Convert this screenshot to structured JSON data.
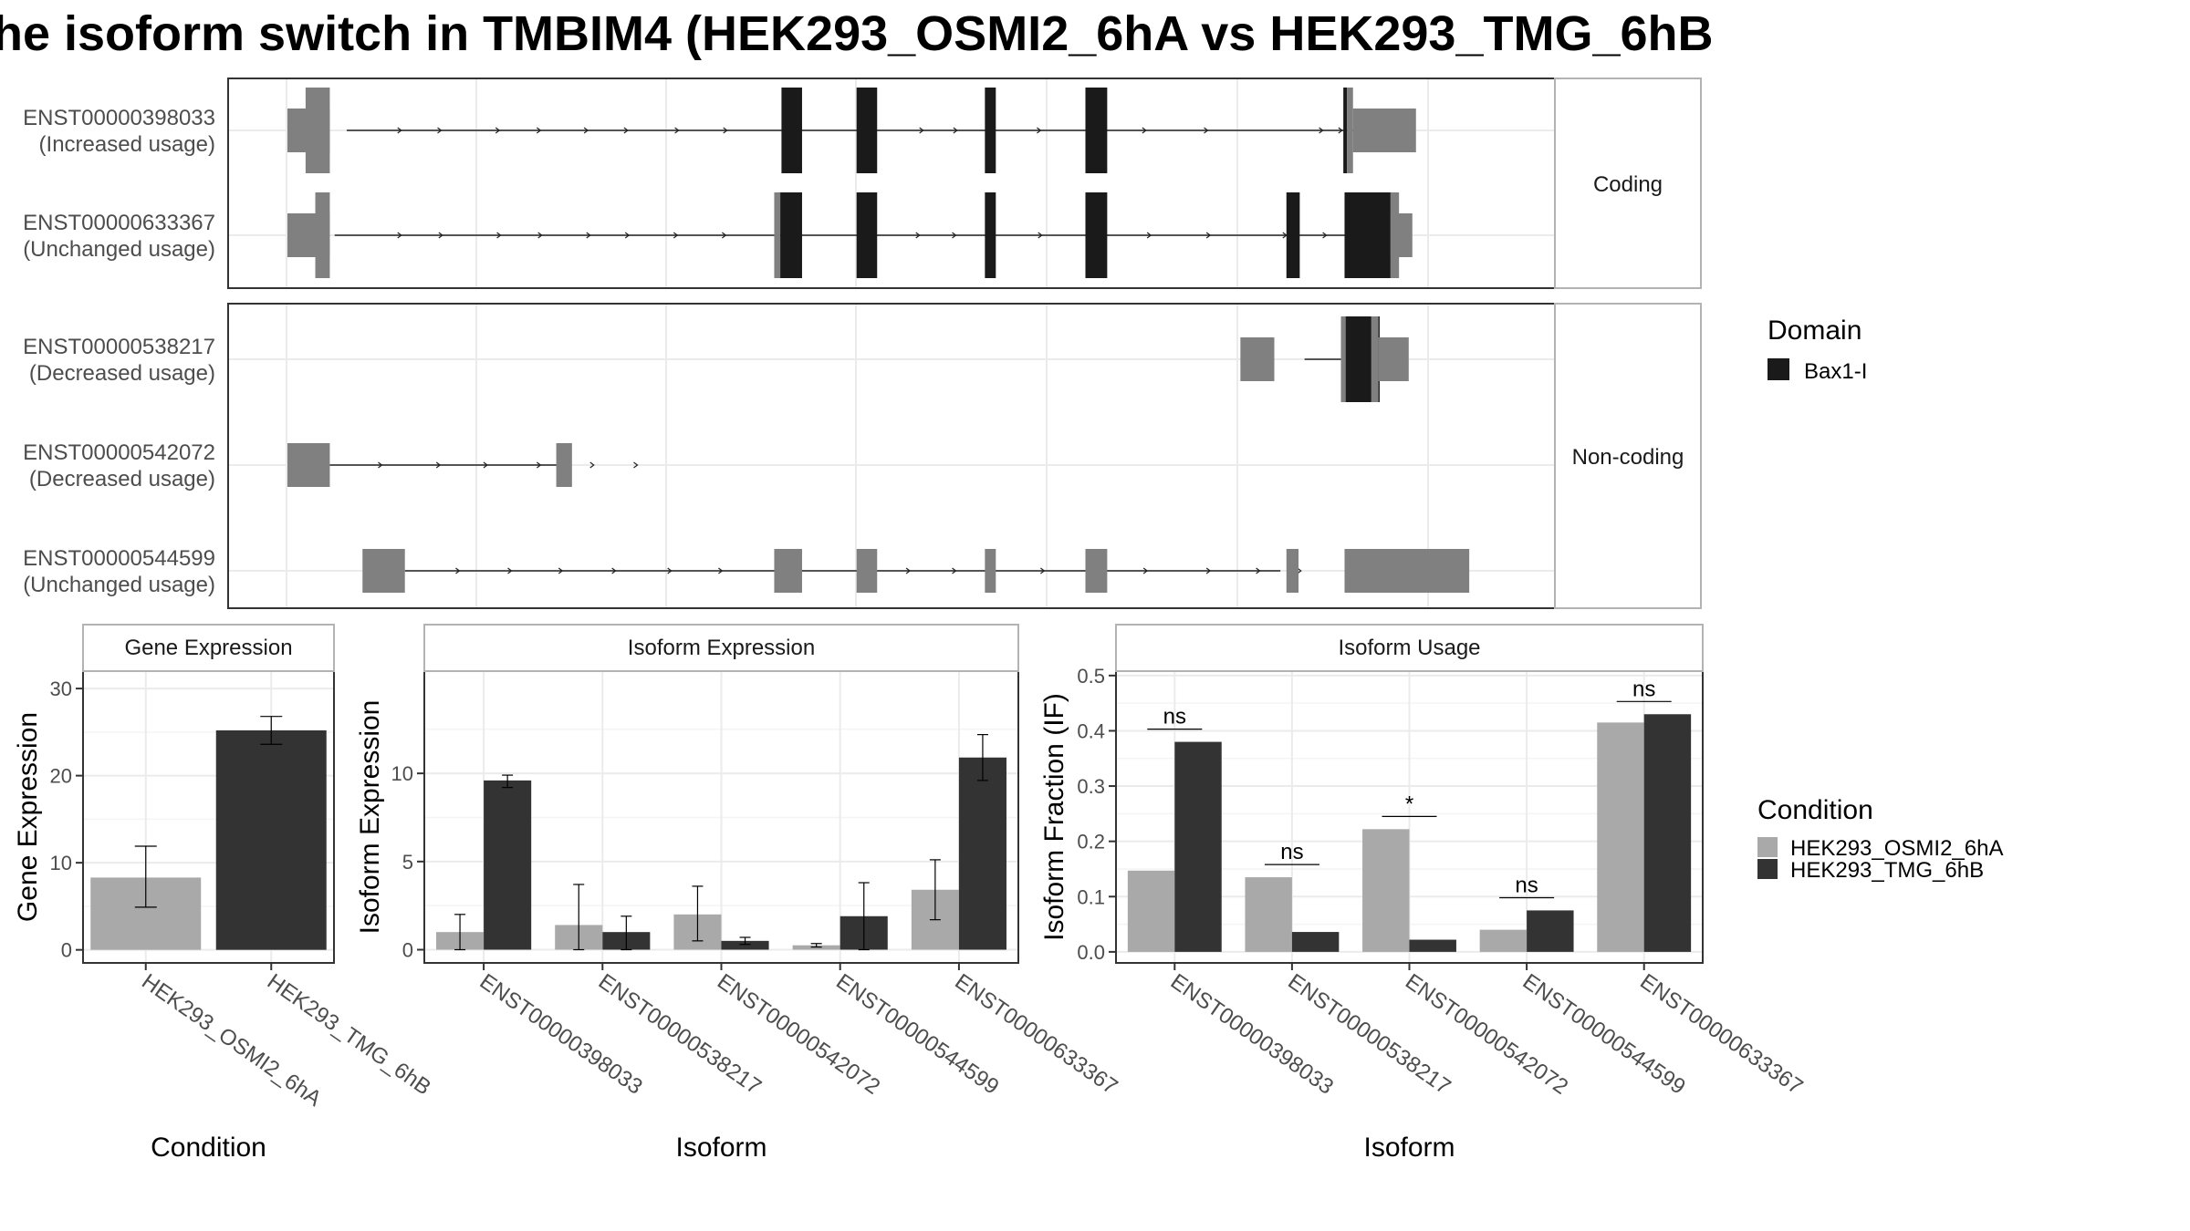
{
  "title": "he isoform switch in TMBIM4 (HEK293_OSMI2_6hA vs HEK293_TMG_6hB",
  "colors": {
    "domain": "#1a1a1a",
    "utr_exon": "#808080",
    "condition_a": "#a9a9a9",
    "condition_b": "#333333",
    "grid": "#ebebeb",
    "panel_border": "#333333",
    "strip_border": "#b3b3b3"
  },
  "structure": {
    "groups": [
      {
        "label": "Coding",
        "transcripts": [
          {
            "id": "ENST00000398033",
            "usage": "(Increased usage)",
            "intron": [
              0.049,
              0.91
            ],
            "arrows": [
              0.094,
              0.127,
              0.175,
              0.209,
              0.248,
              0.281,
              0.323,
              0.363,
              0.525,
              0.553,
              0.622,
              0.67,
              0.709,
              0.76,
              0.855,
              0.871
            ],
            "exons": [
              {
                "s": 0.0,
                "e": 0.035,
                "h": "s"
              },
              {
                "s": 0.015,
                "e": 0.035,
                "h": "l"
              },
              {
                "s": 0.408,
                "e": 0.425,
                "h": "l",
                "d": true
              },
              {
                "s": 0.47,
                "e": 0.487,
                "h": "l",
                "d": true
              },
              {
                "s": 0.576,
                "e": 0.585,
                "h": "l",
                "d": true
              },
              {
                "s": 0.659,
                "e": 0.677,
                "h": "l",
                "d": true
              },
              {
                "s": 0.872,
                "e": 0.875,
                "h": "l",
                "d": true
              },
              {
                "s": 0.875,
                "e": 0.88,
                "h": "l"
              },
              {
                "s": 0.88,
                "e": 0.932,
                "h": "s"
              }
            ]
          },
          {
            "id": "ENST00000633367",
            "usage": "(Unchanged usage)",
            "intron": [
              0.039,
              0.893
            ],
            "arrows": [
              0.094,
              0.128,
              0.176,
              0.21,
              0.25,
              0.282,
              0.322,
              0.362,
              0.522,
              0.552,
              0.623,
              0.67,
              0.713,
              0.762,
              0.825,
              0.858
            ],
            "exons": [
              {
                "s": 0.0,
                "e": 0.035,
                "h": "s"
              },
              {
                "s": 0.023,
                "e": 0.035,
                "h": "l"
              },
              {
                "s": 0.402,
                "e": 0.407,
                "h": "l"
              },
              {
                "s": 0.407,
                "e": 0.425,
                "h": "l",
                "d": true
              },
              {
                "s": 0.47,
                "e": 0.487,
                "h": "l",
                "d": true
              },
              {
                "s": 0.576,
                "e": 0.585,
                "h": "l",
                "d": true
              },
              {
                "s": 0.659,
                "e": 0.677,
                "h": "l",
                "d": true
              },
              {
                "s": 0.825,
                "e": 0.836,
                "h": "l",
                "d": true
              },
              {
                "s": 0.873,
                "e": 0.911,
                "h": "l",
                "d": true
              },
              {
                "s": 0.911,
                "e": 0.918,
                "h": "l"
              },
              {
                "s": 0.911,
                "e": 0.929,
                "h": "s"
              }
            ]
          }
        ]
      },
      {
        "label": "Non-coding",
        "transcripts": [
          {
            "id": "ENST00000538217",
            "usage": "(Decreased usage)",
            "intron": [
              0.84,
              0.87
            ],
            "arrows": [],
            "exons": [
              {
                "s": 0.787,
                "e": 0.815,
                "h": "s"
              },
              {
                "s": 0.874,
                "e": 0.884,
                "h": "s"
              },
              {
                "s": 0.87,
                "e": 0.888,
                "h": "l"
              },
              {
                "s": 0.874,
                "e": 0.902,
                "h": "l",
                "d": true
              },
              {
                "s": 0.895,
                "e": 0.901,
                "h": "l"
              },
              {
                "s": 0.901,
                "e": 0.926,
                "h": "s"
              }
            ]
          },
          {
            "id": "ENST00000542072",
            "usage": "(Decreased usage)",
            "intron": [
              0.035,
              0.227
            ],
            "arrows": [
              0.078,
              0.126,
              0.165,
              0.209,
              0.253,
              0.289
            ],
            "exons": [
              {
                "s": 0.0,
                "e": 0.035,
                "h": "s"
              },
              {
                "s": 0.222,
                "e": 0.235,
                "h": "s"
              }
            ]
          },
          {
            "id": "ENST00000544599",
            "usage": "(Unchanged usage)",
            "intron": [
              0.097,
              0.82
            ],
            "arrows": [
              0.142,
              0.185,
              0.227,
              0.271,
              0.317,
              0.359,
              0.514,
              0.552,
              0.625,
              0.667,
              0.71,
              0.762,
              0.803,
              0.837
            ],
            "exons": [
              {
                "s": 0.062,
                "e": 0.097,
                "h": "s"
              },
              {
                "s": 0.402,
                "e": 0.425,
                "h": "s"
              },
              {
                "s": 0.47,
                "e": 0.487,
                "h": "s"
              },
              {
                "s": 0.576,
                "e": 0.585,
                "h": "s"
              },
              {
                "s": 0.659,
                "e": 0.677,
                "h": "s"
              },
              {
                "s": 0.825,
                "e": 0.835,
                "h": "s"
              },
              {
                "s": 0.873,
                "e": 0.976,
                "h": "s"
              }
            ]
          }
        ]
      }
    ],
    "legend_domain": {
      "title": "Domain",
      "items": [
        "Bax1-I"
      ]
    }
  },
  "chart_data": [
    {
      "type": "bar",
      "title": "Gene Expression",
      "xlabel": "Condition",
      "ylabel": "Gene Expression",
      "categories": [
        "HEK293_OSMI2_6hA",
        "HEK293_TMG_6hB"
      ],
      "values": [
        8.3,
        25.2
      ],
      "errors": [
        [
          4.9,
          11.9
        ],
        [
          23.6,
          26.8
        ]
      ],
      "ylim": [
        -1.5,
        32
      ],
      "yticks": [
        0,
        10,
        20,
        30
      ],
      "grid": true
    },
    {
      "type": "bar",
      "title": "Isoform Expression",
      "xlabel": "Isoform",
      "ylabel": "Isoform Expression",
      "categories": [
        "ENST00000398033",
        "ENST00000538217",
        "ENST00000542072",
        "ENST00000544599",
        "ENST00000633367"
      ],
      "series": [
        {
          "name": "HEK293_OSMI2_6hA",
          "values": [
            1.0,
            1.4,
            2.0,
            0.25,
            3.4
          ],
          "errors": [
            [
              0.0,
              2.0
            ],
            [
              0.0,
              3.7
            ],
            [
              0.5,
              3.6
            ],
            [
              0.15,
              0.35
            ],
            [
              1.7,
              5.1
            ]
          ]
        },
        {
          "name": "HEK293_TMG_6hB",
          "values": [
            9.6,
            1.0,
            0.5,
            1.9,
            10.9
          ],
          "errors": [
            [
              9.2,
              9.9
            ],
            [
              0.0,
              1.9
            ],
            [
              0.3,
              0.7
            ],
            [
              0.0,
              3.8
            ],
            [
              9.6,
              12.2
            ]
          ]
        }
      ],
      "ylim": [
        -0.75,
        15.8
      ],
      "yticks": [
        0,
        5,
        10
      ],
      "grid": true
    },
    {
      "type": "bar",
      "title": "Isoform Usage",
      "xlabel": "Isoform",
      "ylabel": "Isoform Fraction (IF)",
      "categories": [
        "ENST00000398033",
        "ENST00000538217",
        "ENST00000542072",
        "ENST00000544599",
        "ENST00000633367"
      ],
      "series": [
        {
          "name": "HEK293_OSMI2_6hA",
          "values": [
            0.147,
            0.135,
            0.222,
            0.04,
            0.415
          ]
        },
        {
          "name": "HEK293_TMG_6hB",
          "values": [
            0.38,
            0.036,
            0.022,
            0.075,
            0.43
          ]
        }
      ],
      "significance": [
        {
          "label": "ns",
          "y": 0.403
        },
        {
          "label": "ns",
          "y": 0.158
        },
        {
          "label": "*",
          "y": 0.245
        },
        {
          "label": "ns",
          "y": 0.098
        },
        {
          "label": "ns",
          "y": 0.453
        }
      ],
      "ylim": [
        -0.02,
        0.508
      ],
      "yticks": [
        0.0,
        0.1,
        0.2,
        0.3,
        0.4,
        0.5
      ],
      "ytick_labels": [
        "0.0",
        "0.1",
        "0.2",
        "0.3",
        "0.4",
        "0.5"
      ],
      "grid": true
    }
  ],
  "legend_condition": {
    "title": "Condition",
    "items": [
      "HEK293_OSMI2_6hA",
      "HEK293_TMG_6hB"
    ]
  }
}
